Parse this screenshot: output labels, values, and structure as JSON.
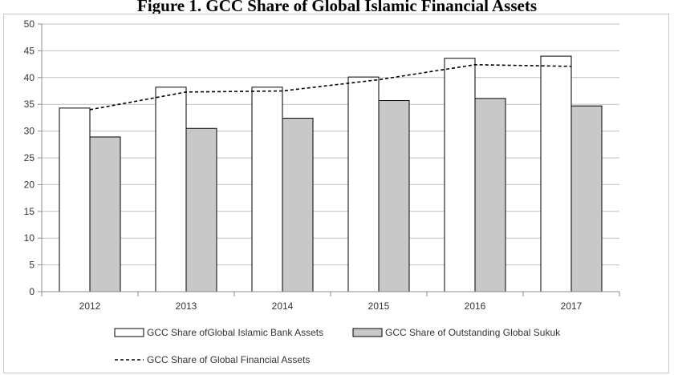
{
  "chart_data": {
    "type": "bar",
    "title": "Figure 1. GCC Share of Global Islamic Financial Assets",
    "categories": [
      "2012",
      "2013",
      "2014",
      "2015",
      "2016",
      "2017"
    ],
    "series": [
      {
        "name": "GCC Share ofGlobal Islamic Bank Assets",
        "type": "bar",
        "color": "#ffffff",
        "values": [
          34.3,
          38.2,
          38.2,
          40.1,
          43.6,
          44.0
        ]
      },
      {
        "name": "GCC Share of Outstanding Global Sukuk",
        "type": "bar",
        "color": "#c8c8c8",
        "values": [
          28.9,
          30.5,
          32.4,
          35.7,
          36.1,
          34.7
        ]
      },
      {
        "name": "GCC Share of Global Financial Assets",
        "type": "line",
        "color": "#000000",
        "values": [
          34.0,
          37.3,
          37.5,
          39.6,
          42.4,
          42.1
        ]
      }
    ],
    "yticks": [
      "0",
      "5",
      "10",
      "15",
      "20",
      "25",
      "30",
      "35",
      "40",
      "45",
      "50"
    ],
    "ylim": [
      0,
      50
    ],
    "grid": true,
    "legend": "bottom"
  }
}
